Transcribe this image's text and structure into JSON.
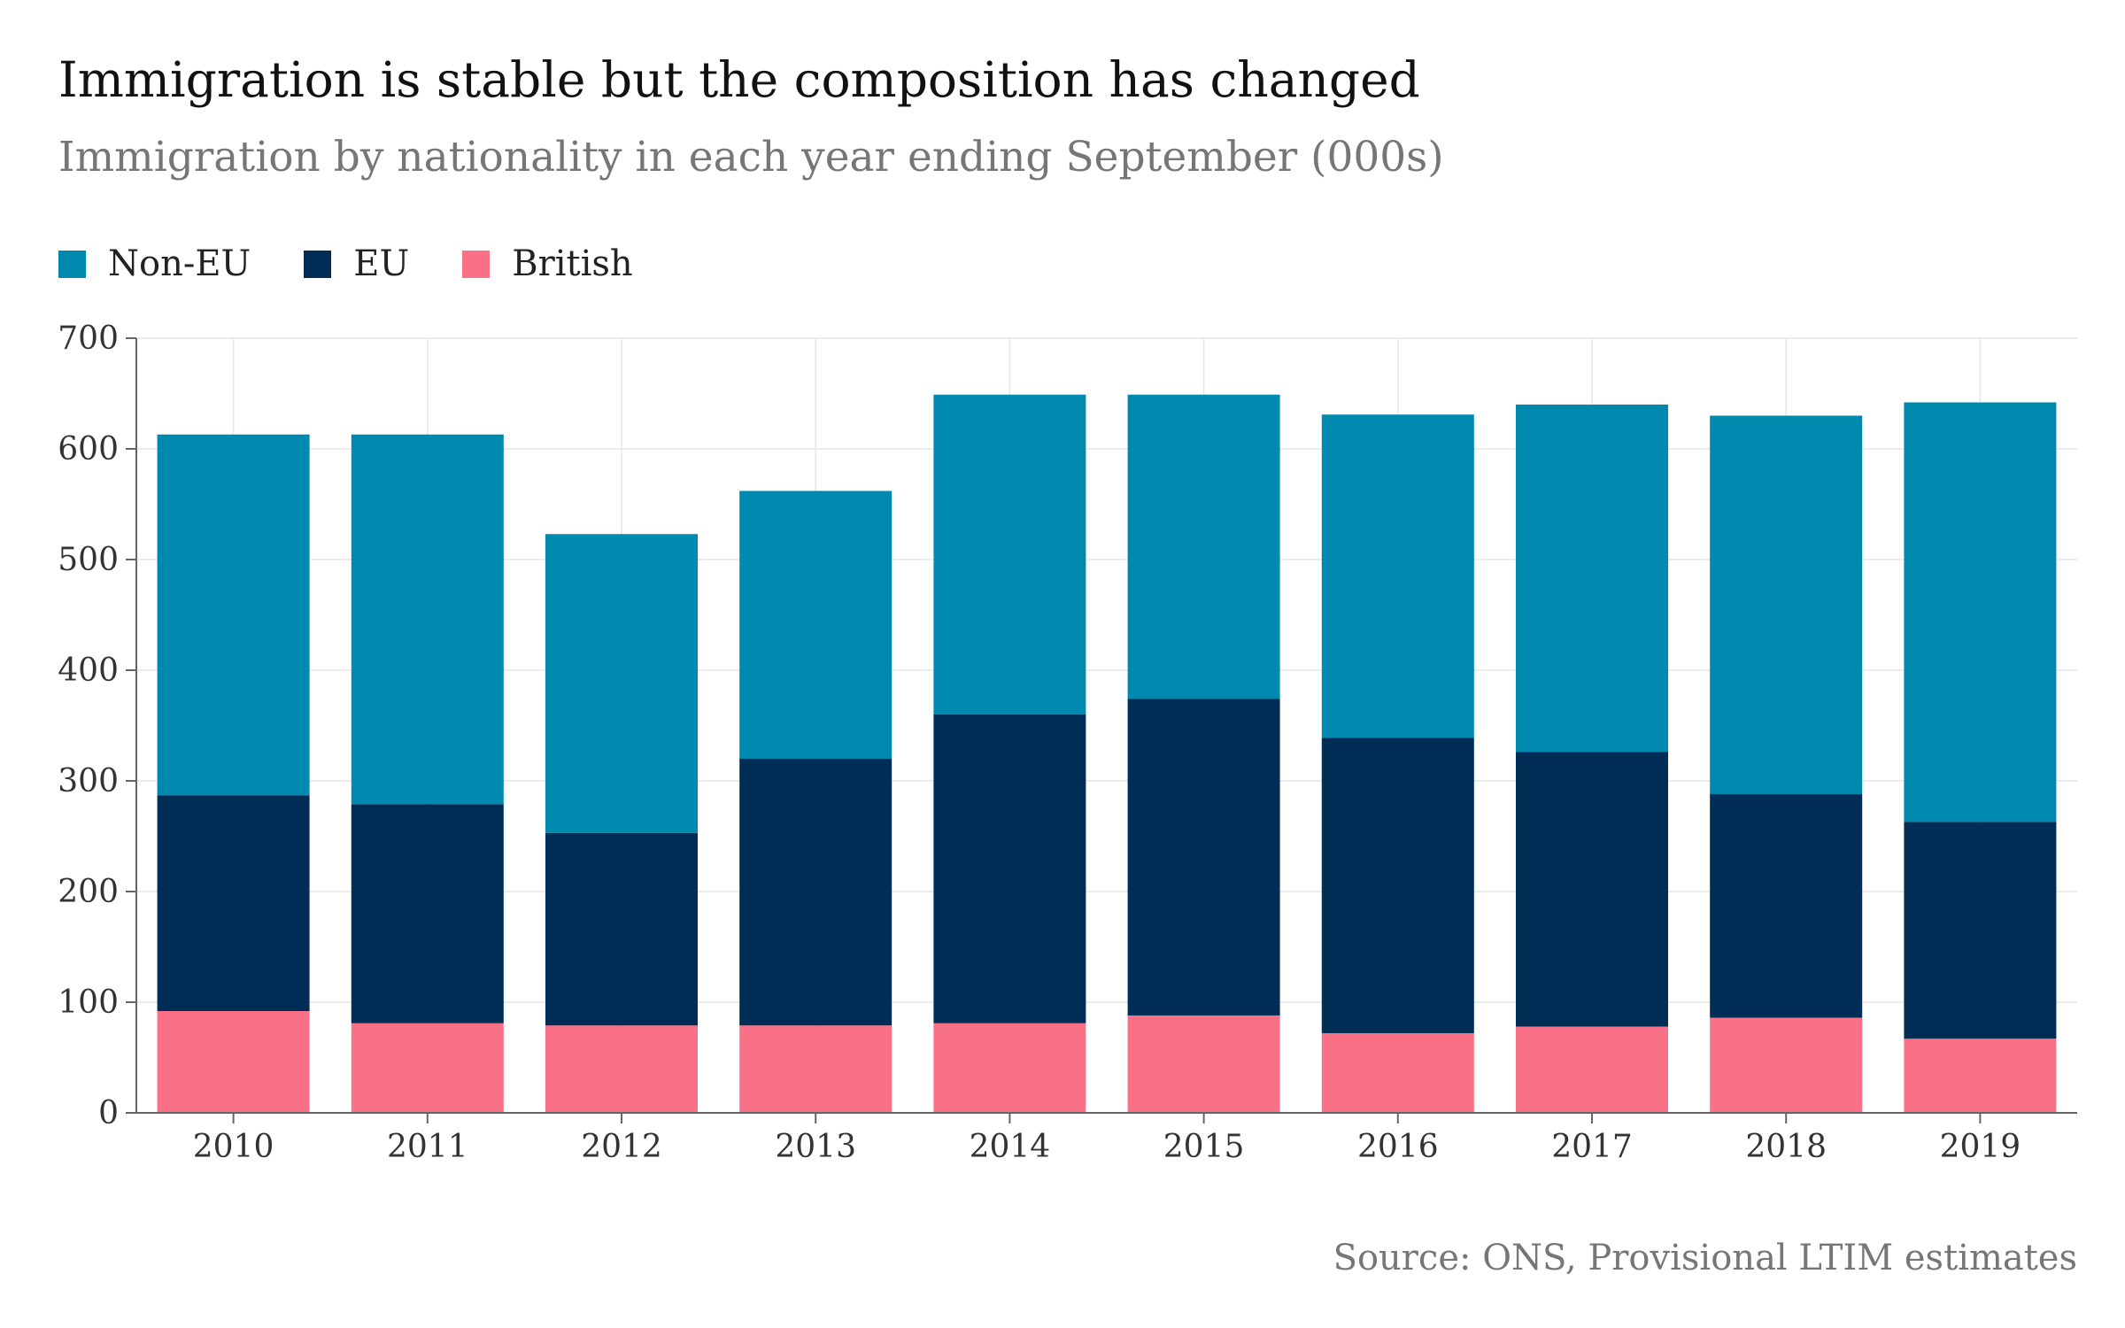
{
  "chart_data": {
    "type": "bar",
    "stacked": true,
    "title": "Immigration is stable but the composition has changed",
    "subtitle": "Immigration by nationality in each year ending September (000s)",
    "source": "Source: ONS, Provisional LTIM estimates",
    "categories": [
      "2010",
      "2011",
      "2012",
      "2013",
      "2014",
      "2015",
      "2016",
      "2017",
      "2018",
      "2019"
    ],
    "series": [
      {
        "name": "British",
        "color": "#F87187",
        "values": [
          92,
          81,
          79,
          79,
          81,
          88,
          72,
          78,
          86,
          67
        ]
      },
      {
        "name": "EU",
        "color": "#002D56",
        "values": [
          195,
          198,
          174,
          241,
          279,
          286,
          267,
          248,
          202,
          196
        ]
      },
      {
        "name": "Non-EU",
        "color": "#0089AF",
        "values": [
          326,
          334,
          270,
          242,
          289,
          275,
          292,
          314,
          342,
          379
        ]
      }
    ],
    "legend_order": [
      "Non-EU",
      "EU",
      "British"
    ],
    "legend_position": "top-left",
    "ylim": [
      0,
      700
    ],
    "yticks": [
      0,
      100,
      200,
      300,
      400,
      500,
      600,
      700
    ],
    "grid": true,
    "xlabel": "",
    "ylabel": ""
  }
}
